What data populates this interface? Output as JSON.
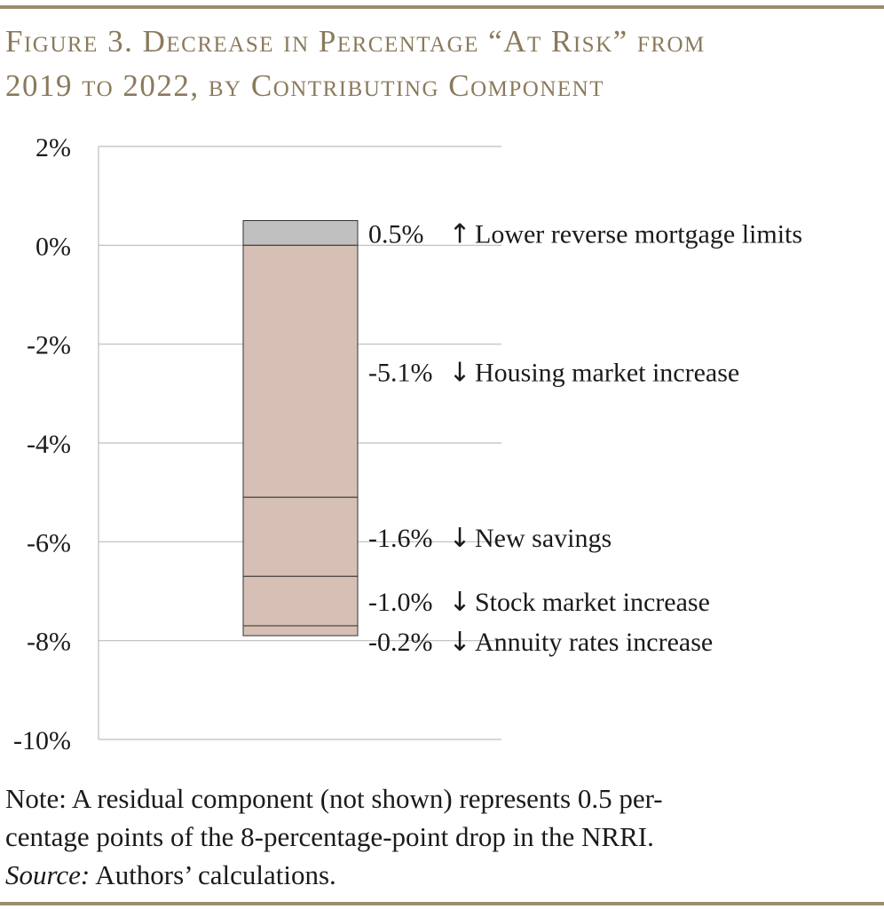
{
  "colors": {
    "rule": "#9a8c6e",
    "title": "#8a7a5c",
    "positive_bar": "#c0c0c0",
    "negative_bar": "#d6bfb5",
    "grid": "#bdbdbd"
  },
  "figure_title_line1": "Figure 3. Decrease in Percentage “At Risk” from",
  "figure_title_line2": "2019 to 2022, by Contributing Component",
  "chart_data": {
    "type": "bar",
    "subtype": "stacked-waterfall",
    "ylim": [
      -10,
      2
    ],
    "yticks": [
      {
        "value": 2,
        "label": "2%"
      },
      {
        "value": 0,
        "label": "0%"
      },
      {
        "value": -2,
        "label": "-2%"
      },
      {
        "value": -4,
        "label": "-4%"
      },
      {
        "value": -6,
        "label": "-6%"
      },
      {
        "value": -8,
        "label": "-8%"
      },
      {
        "value": -10,
        "label": "-10%"
      }
    ],
    "grid": true,
    "components": [
      {
        "name": "Lower reverse mortgage limits",
        "value": 0.5,
        "value_label": "0.5%",
        "direction": "up",
        "arrow": "↑"
      },
      {
        "name": "Housing market increase",
        "value": -5.1,
        "value_label": "-5.1%",
        "direction": "down",
        "arrow": "↓"
      },
      {
        "name": "New savings",
        "value": -1.6,
        "value_label": "-1.6%",
        "direction": "down",
        "arrow": "↓"
      },
      {
        "name": "Stock market increase",
        "value": -1.0,
        "value_label": "-1.0%",
        "direction": "down",
        "arrow": "↓"
      },
      {
        "name": "Annuity rates increase",
        "value": -0.2,
        "value_label": "-0.2%",
        "direction": "down",
        "arrow": "↓"
      }
    ]
  },
  "note": {
    "line1": "Note: A residual component (not shown) represents 0.5 per-",
    "line2": "centage points of the 8-percentage-point drop in the NRRI.",
    "source_label": "Source:",
    "source_text": " Authors’ calculations."
  }
}
